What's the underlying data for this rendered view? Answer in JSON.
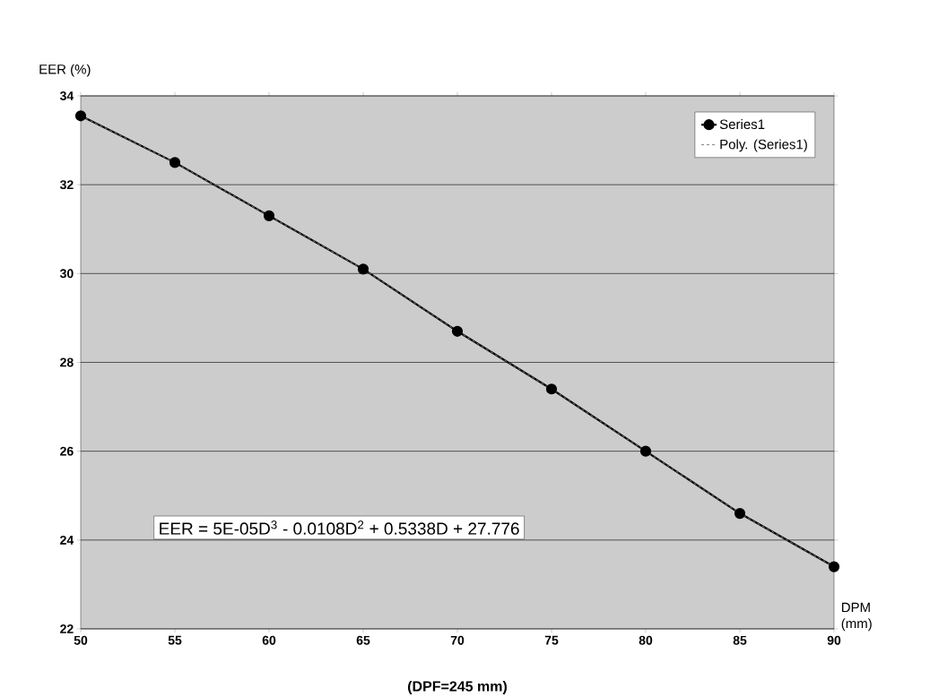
{
  "chart_data": {
    "type": "line",
    "ylabel": "EER (%)",
    "xlabel": "DPM (mm)",
    "annotations": [
      "EER = 5E-05D$^{3}$ - 0.0108D$^{2}$ + 0.5338D + 27.776",
      "(DPF=245 mm)"
    ],
    "x": [
      50,
      55,
      60,
      65,
      70,
      75,
      80,
      85,
      90
    ],
    "series": [
      {
        "name": "Series1",
        "color": "#000000",
        "marker": "circle",
        "line_style": "solid",
        "values": [
          33.55,
          32.5,
          31.3,
          30.1,
          28.7,
          27.4,
          26.0,
          24.6,
          23.4
        ]
      },
      {
        "name": "Poly. (Series1)",
        "color": "#808080",
        "marker": "none",
        "line_style": "dashed",
        "values": [
          33.55,
          32.5,
          31.3,
          30.1,
          28.7,
          27.4,
          26.0,
          24.6,
          23.4
        ]
      }
    ],
    "xlim": [
      50,
      90
    ],
    "ylim": [
      22,
      34
    ],
    "xticks": [
      50,
      55,
      60,
      65,
      70,
      75,
      80,
      85,
      90
    ],
    "yticks": [
      22,
      24,
      26,
      28,
      30,
      32,
      34
    ],
    "grid": "y",
    "legend": "top right"
  }
}
